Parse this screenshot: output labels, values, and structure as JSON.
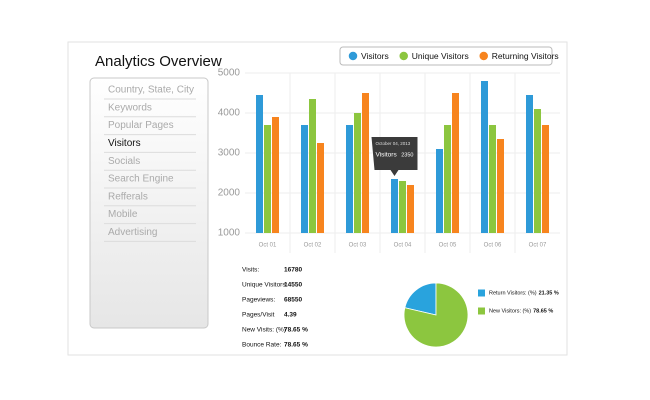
{
  "title": "Analytics Overview",
  "menu": {
    "items": [
      "Country, State, City",
      "Keywords",
      "Popular Pages",
      "Visitors",
      "Socials",
      "Search Engine",
      "Refferals",
      "Mobile",
      "Advertising"
    ],
    "active": 3
  },
  "tooltip": {
    "title": "October 04, 2013",
    "series": 0,
    "index": 3
  },
  "stats": {
    "rows": [
      [
        "Visits:",
        "16780"
      ],
      [
        "Unique Visitors:",
        "14550"
      ],
      [
        "Pageviews:",
        "68550"
      ],
      [
        "Pages/Visit",
        "4.39"
      ],
      [
        "New Visits: (%)",
        "78.65 %"
      ],
      [
        "Bounce Rate:",
        "78.65 %"
      ]
    ]
  },
  "chart_data": [
    {
      "type": "bar",
      "categories": [
        "Oct 01",
        "Oct 02",
        "Oct 03",
        "Oct 04",
        "Oct 05",
        "Oct 06",
        "Oct 07"
      ],
      "series": [
        {
          "name": "Visitors",
          "color": "#2e9ad8",
          "values": [
            4450,
            3700,
            3700,
            2350,
            3100,
            4800,
            4450
          ]
        },
        {
          "name": "Unique Visitors",
          "color": "#8cc63f",
          "values": [
            3700,
            4350,
            4000,
            2300,
            3700,
            3700,
            4100
          ]
        },
        {
          "name": "Returning Visitors",
          "color": "#f7841e",
          "values": [
            3900,
            3250,
            4500,
            2200,
            4500,
            3350,
            3700
          ]
        }
      ],
      "ylim": [
        1000,
        5000
      ],
      "yticks": [
        1000,
        2000,
        3000,
        4000,
        5000
      ],
      "grid": true,
      "legend": "top-right"
    },
    {
      "type": "pie",
      "categories": [
        "Return Visitors: (%)",
        "New Visitors: (%)"
      ],
      "values": [
        21.35,
        78.65
      ],
      "value_labels": [
        "21.35 %",
        "78.65 %"
      ],
      "colors": [
        "#29a3dd",
        "#8cc63f"
      ]
    }
  ]
}
